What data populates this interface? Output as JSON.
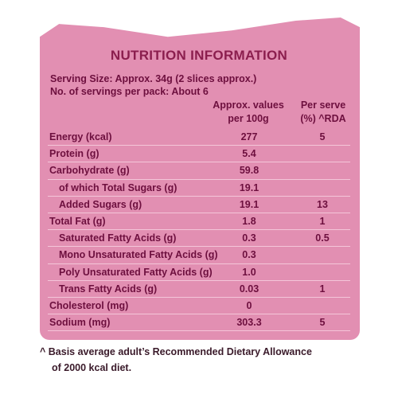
{
  "title": "NUTRITION INFORMATION",
  "serving_size": "Serving Size: Approx. 34g (2 slices approx.)",
  "servings_per_pack": "No. of servings per pack: About 6",
  "columns": {
    "per100_line1": "Approx. values",
    "per100_line2": "per 100g",
    "rda_line1": "Per serve",
    "rda_line2": "(%) ^RDA"
  },
  "rows": [
    {
      "label": "Energy (kcal)",
      "per100": "277",
      "rda": "5",
      "indent": false
    },
    {
      "label": "Protein (g)",
      "per100": "5.4",
      "rda": "",
      "indent": false
    },
    {
      "label": "Carbohydrate (g)",
      "per100": "59.8",
      "rda": "",
      "indent": false
    },
    {
      "label": "of which Total Sugars (g)",
      "per100": "19.1",
      "rda": "",
      "indent": true
    },
    {
      "label": "Added Sugars (g)",
      "per100": "19.1",
      "rda": "13",
      "indent": true
    },
    {
      "label": "Total Fat (g)",
      "per100": "1.8",
      "rda": "1",
      "indent": false
    },
    {
      "label": "Saturated Fatty Acids (g)",
      "per100": "0.3",
      "rda": "0.5",
      "indent": true
    },
    {
      "label": "Mono Unsaturated Fatty Acids (g)",
      "per100": "0.3",
      "rda": "",
      "indent": true
    },
    {
      "label": "Poly Unsaturated Fatty Acids (g)",
      "per100": "1.0",
      "rda": "",
      "indent": true
    },
    {
      "label": "Trans Fatty Acids (g)",
      "per100": "0.03",
      "rda": "1",
      "indent": true
    },
    {
      "label": "Cholesterol (mg)",
      "per100": "0",
      "rda": "",
      "indent": false
    },
    {
      "label": "Sodium (mg)",
      "per100": "303.3",
      "rda": "5",
      "indent": false
    }
  ],
  "footnote_line1": "^ Basis average adult’s Recommended Dietary Allowance",
  "footnote_line2": "of 2000 kcal diet.",
  "colors": {
    "panel": "#e28fb2",
    "title": "#8b1e4e",
    "text": "#6d0f3e"
  }
}
